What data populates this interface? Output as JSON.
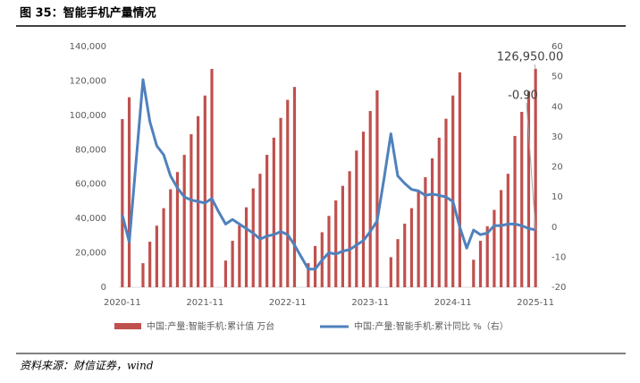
{
  "chart_data": {
    "type": "bar_line",
    "title": "图 35：智能手机产量情况",
    "source": "资料来源：财信证券，wind",
    "categories": [
      "2020-11",
      null,
      null,
      null,
      null,
      null,
      null,
      null,
      null,
      null,
      null,
      null,
      "2021-11",
      null,
      null,
      null,
      null,
      null,
      null,
      null,
      null,
      null,
      null,
      null,
      "2022-11",
      null,
      null,
      null,
      null,
      null,
      null,
      null,
      null,
      null,
      null,
      null,
      "2023-11",
      null,
      null,
      null,
      null,
      null,
      null,
      null,
      null,
      null,
      null,
      null,
      "2024-11",
      null,
      null,
      null,
      null,
      null,
      null,
      null,
      null,
      null,
      null,
      null,
      "2025-11"
    ],
    "series": [
      {
        "name": "中国:产量:智能手机:累计值   万台",
        "color": "#c0504d",
        "kind": "bar",
        "values": [
          97800,
          110500,
          null,
          14000,
          26500,
          35800,
          46000,
          57000,
          67000,
          77000,
          89000,
          99500,
          111500,
          127000,
          null,
          15500,
          27000,
          36000,
          46500,
          57500,
          66000,
          77000,
          87000,
          98500,
          109000,
          116500,
          null,
          14000,
          24000,
          32000,
          41500,
          50500,
          59000,
          67500,
          79500,
          90500,
          102500,
          114500,
          null,
          17500,
          28000,
          37000,
          46000,
          55500,
          64000,
          75000,
          87000,
          98000,
          111500,
          125000,
          null,
          16000,
          27000,
          35500,
          45000,
          56500,
          66000,
          88000,
          102000,
          114000,
          126950
        ]
      },
      {
        "name": "中国:产量:智能手机:累计同比   %（右）",
        "color": "#4f81bd",
        "kind": "line",
        "axis": "y2",
        "values": [
          4,
          -5,
          22,
          49,
          35,
          27,
          24,
          17,
          13,
          10,
          9,
          8.5,
          8,
          9.5,
          5,
          1,
          2.5,
          1,
          -0.5,
          -2,
          -4,
          -3,
          -2.5,
          -1.5,
          -2.5,
          -6,
          -10,
          -14,
          -14,
          -11,
          -8.5,
          -9,
          -8,
          -7.5,
          -6,
          -4.5,
          -1.5,
          2,
          16,
          31,
          17,
          14.5,
          12.5,
          12,
          10.5,
          11,
          10.5,
          10,
          8.5,
          0,
          -7,
          -1,
          -2.5,
          -2,
          0.5,
          0.5,
          1,
          1,
          0.5,
          -0.5,
          -0.9
        ]
      }
    ],
    "annotations": [
      "126,950.00",
      "-0.90"
    ],
    "ylim": [
      0,
      140000
    ],
    "yticks": [
      0,
      {
        "value": 20000,
        "label": "20,000"
      },
      {
        "value": 40000,
        "label": "40,000"
      },
      {
        "value": 60000,
        "label": "60,000"
      },
      {
        "value": 80000,
        "label": "80,000"
      },
      {
        "value": 100000,
        "label": "100,000"
      },
      {
        "value": 120000,
        "label": "120,000"
      },
      {
        "value": 140000,
        "label": "140,000"
      }
    ],
    "y2lim": [
      -20,
      60
    ],
    "y2ticks": [
      -20,
      -10,
      0,
      10,
      20,
      30,
      40,
      50,
      60
    ],
    "grid": false
  }
}
